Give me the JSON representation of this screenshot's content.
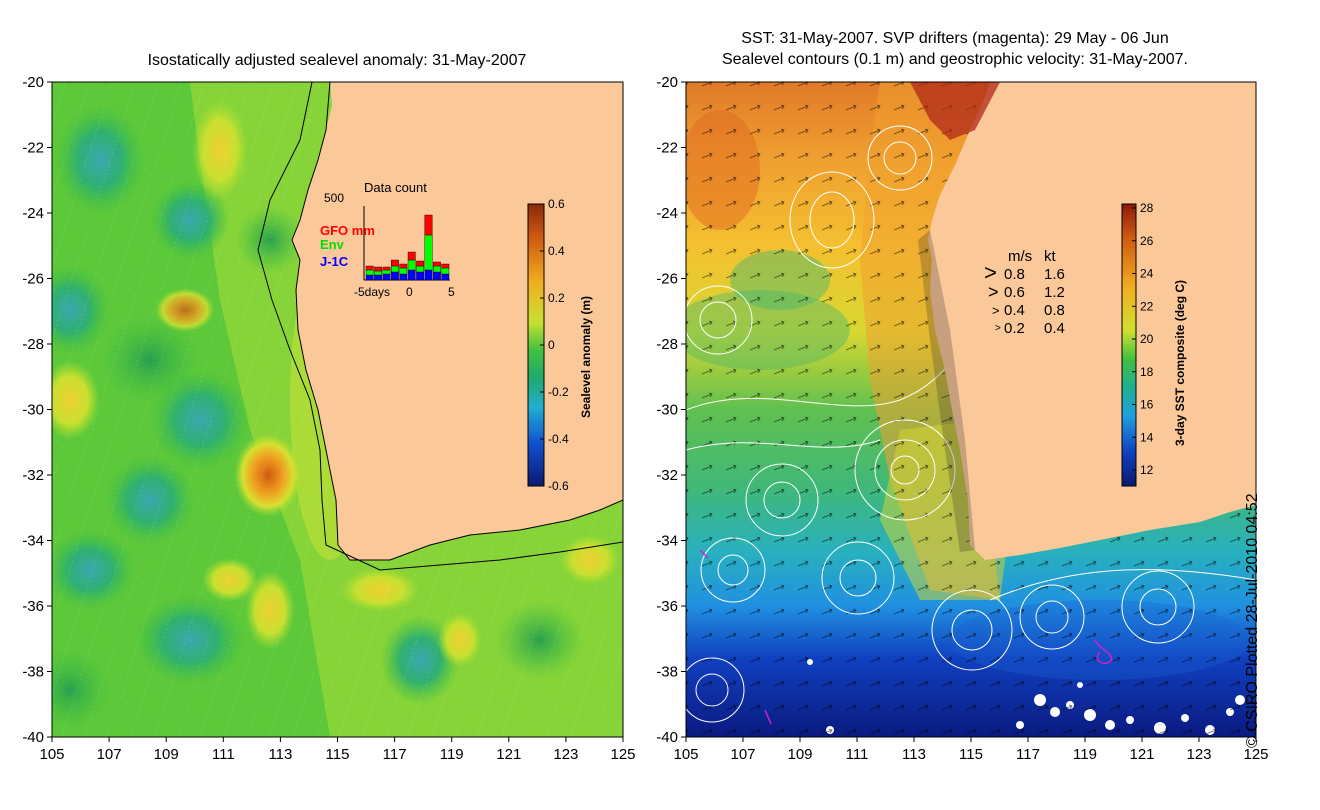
{
  "left_panel": {
    "title": "Isostatically adjusted sealevel anomaly: 31-May-2007",
    "colorbar": {
      "label": "Sealevel anomaly (m)",
      "ticks": [
        "0.6",
        "0.4",
        "0.2",
        "0",
        "-0.2",
        "-0.4",
        "-0.6"
      ]
    },
    "inset": {
      "title": "Data count",
      "ymax_label": "500",
      "legend": [
        {
          "label": "GFO mm",
          "color": "#ff0000"
        },
        {
          "label": "Env",
          "color": "#00ff00"
        },
        {
          "label": "J-1C",
          "color": "#0000ff"
        }
      ],
      "xlabel_left": "-5days",
      "xlabel_mid": "0",
      "xlabel_right": "5"
    }
  },
  "right_panel": {
    "title_line1": "SST: 31-May-2007. SVP drifters (magenta): 29 May - 06 Jun",
    "title_line2": "Sealevel contours (0.1 m) and geostrophic velocity: 31-May-2007.",
    "colorbar": {
      "label": "3-day SST composite (deg C)",
      "ticks": [
        "28",
        "26",
        "24",
        "22",
        "20",
        "18",
        "16",
        "14",
        "12"
      ]
    },
    "velocity_legend": {
      "header_ms": "m/s",
      "header_kt": "kt",
      "rows": [
        {
          "ms": "0.8",
          "kt": "1.6"
        },
        {
          "ms": "0.6",
          "kt": "1.2"
        },
        {
          "ms": "0.4",
          "kt": "0.8"
        },
        {
          "ms": "0.2",
          "kt": "0.4"
        }
      ]
    }
  },
  "axes": {
    "x_ticks": [
      "105",
      "107",
      "109",
      "111",
      "113",
      "115",
      "117",
      "119",
      "121",
      "123",
      "125"
    ],
    "y_ticks": [
      "-20",
      "-22",
      "-24",
      "-26",
      "-28",
      "-30",
      "-32",
      "-34",
      "-36",
      "-38",
      "-40"
    ]
  },
  "copyright": "© CSIRO Plotted 28-Jul-2010 04:52",
  "colors": {
    "land": "#fbc89a",
    "sea_green": "#66cc33",
    "sst_warm": "#e08030",
    "sst_cold": "#0a2a9a"
  }
}
